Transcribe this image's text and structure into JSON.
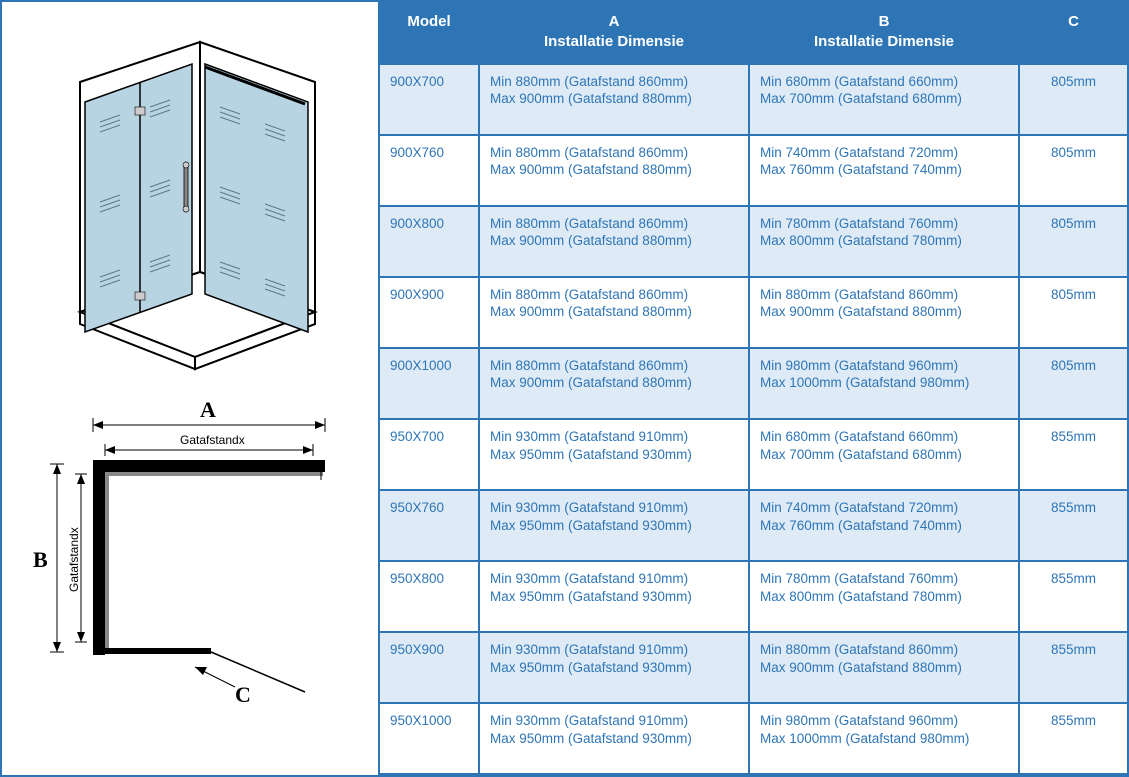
{
  "colors": {
    "header_bg": "#2e75b6",
    "header_text": "#ffffff",
    "cell_text": "#2e75b6",
    "row_odd_bg": "#deebf7",
    "row_even_bg": "#ffffff",
    "border": "#2e75b6",
    "glass": "#b8d4e3",
    "diagram_stroke": "#000000"
  },
  "diagram": {
    "label_a": "A",
    "label_b": "B",
    "label_c": "C",
    "gataf_a": "Gatafstandx",
    "gataf_b": "Gatafstandx"
  },
  "table": {
    "columns": [
      {
        "key": "model",
        "header_l1": "Model",
        "header_l2": ""
      },
      {
        "key": "a",
        "header_l1": "A",
        "header_l2": "Installatie Dimensie"
      },
      {
        "key": "b",
        "header_l1": "B",
        "header_l2": "Installatie Dimensie"
      },
      {
        "key": "c",
        "header_l1": "C",
        "header_l2": ""
      }
    ],
    "rows": [
      {
        "model": "900X700",
        "a_min": "Min 880mm (Gatafstand 860mm)",
        "a_max": "Max 900mm (Gatafstand 880mm)",
        "b_min": "Min 680mm (Gatafstand 660mm)",
        "b_max": "Max 700mm (Gatafstand 680mm)",
        "c": "805mm"
      },
      {
        "model": "900X760",
        "a_min": "Min 880mm (Gatafstand 860mm)",
        "a_max": "Max 900mm (Gatafstand 880mm)",
        "b_min": "Min 740mm (Gatafstand 720mm)",
        "b_max": "Max 760mm (Gatafstand 740mm)",
        "c": "805mm"
      },
      {
        "model": "900X800",
        "a_min": "Min 880mm (Gatafstand 860mm)",
        "a_max": "Max 900mm (Gatafstand 880mm)",
        "b_min": "Min 780mm (Gatafstand 760mm)",
        "b_max": "Max 800mm (Gatafstand 780mm)",
        "c": "805mm"
      },
      {
        "model": "900X900",
        "a_min": "Min 880mm (Gatafstand 860mm)",
        "a_max": "Max 900mm (Gatafstand 880mm)",
        "b_min": "Min 880mm (Gatafstand 860mm)",
        "b_max": "Max 900mm (Gatafstand 880mm)",
        "c": "805mm"
      },
      {
        "model": "900X1000",
        "a_min": "Min 880mm (Gatafstand 860mm)",
        "a_max": "Max 900mm (Gatafstand 880mm)",
        "b_min": "Min 980mm (Gatafstand 960mm)",
        "b_max": "Max 1000mm (Gatafstand 980mm)",
        "c": "805mm"
      },
      {
        "model": "950X700",
        "a_min": "Min 930mm (Gatafstand 910mm)",
        "a_max": "Max 950mm (Gatafstand 930mm)",
        "b_min": "Min 680mm (Gatafstand 660mm)",
        "b_max": "Max 700mm (Gatafstand 680mm)",
        "c": "855mm"
      },
      {
        "model": "950X760",
        "a_min": "Min 930mm (Gatafstand 910mm)",
        "a_max": "Max 950mm (Gatafstand 930mm)",
        "b_min": "Min 740mm (Gatafstand 720mm)",
        "b_max": "Max 760mm (Gatafstand 740mm)",
        "c": "855mm"
      },
      {
        "model": "950X800",
        "a_min": "Min 930mm (Gatafstand 910mm)",
        "a_max": "Max 950mm (Gatafstand 930mm)",
        "b_min": "Min 780mm (Gatafstand 760mm)",
        "b_max": "Max 800mm (Gatafstand 780mm)",
        "c": "855mm"
      },
      {
        "model": "950X900",
        "a_min": "Min 930mm (Gatafstand 910mm)",
        "a_max": "Max 950mm (Gatafstand 930mm)",
        "b_min": "Min 880mm (Gatafstand 860mm)",
        "b_max": "Max 900mm (Gatafstand 880mm)",
        "c": "855mm"
      },
      {
        "model": "950X1000",
        "a_min": "Min 930mm (Gatafstand 910mm)",
        "a_max": "Max 950mm (Gatafstand 930mm)",
        "b_min": "Min 980mm (Gatafstand 960mm)",
        "b_max": "Max 1000mm (Gatafstand 980mm)",
        "c": "855mm"
      }
    ]
  }
}
